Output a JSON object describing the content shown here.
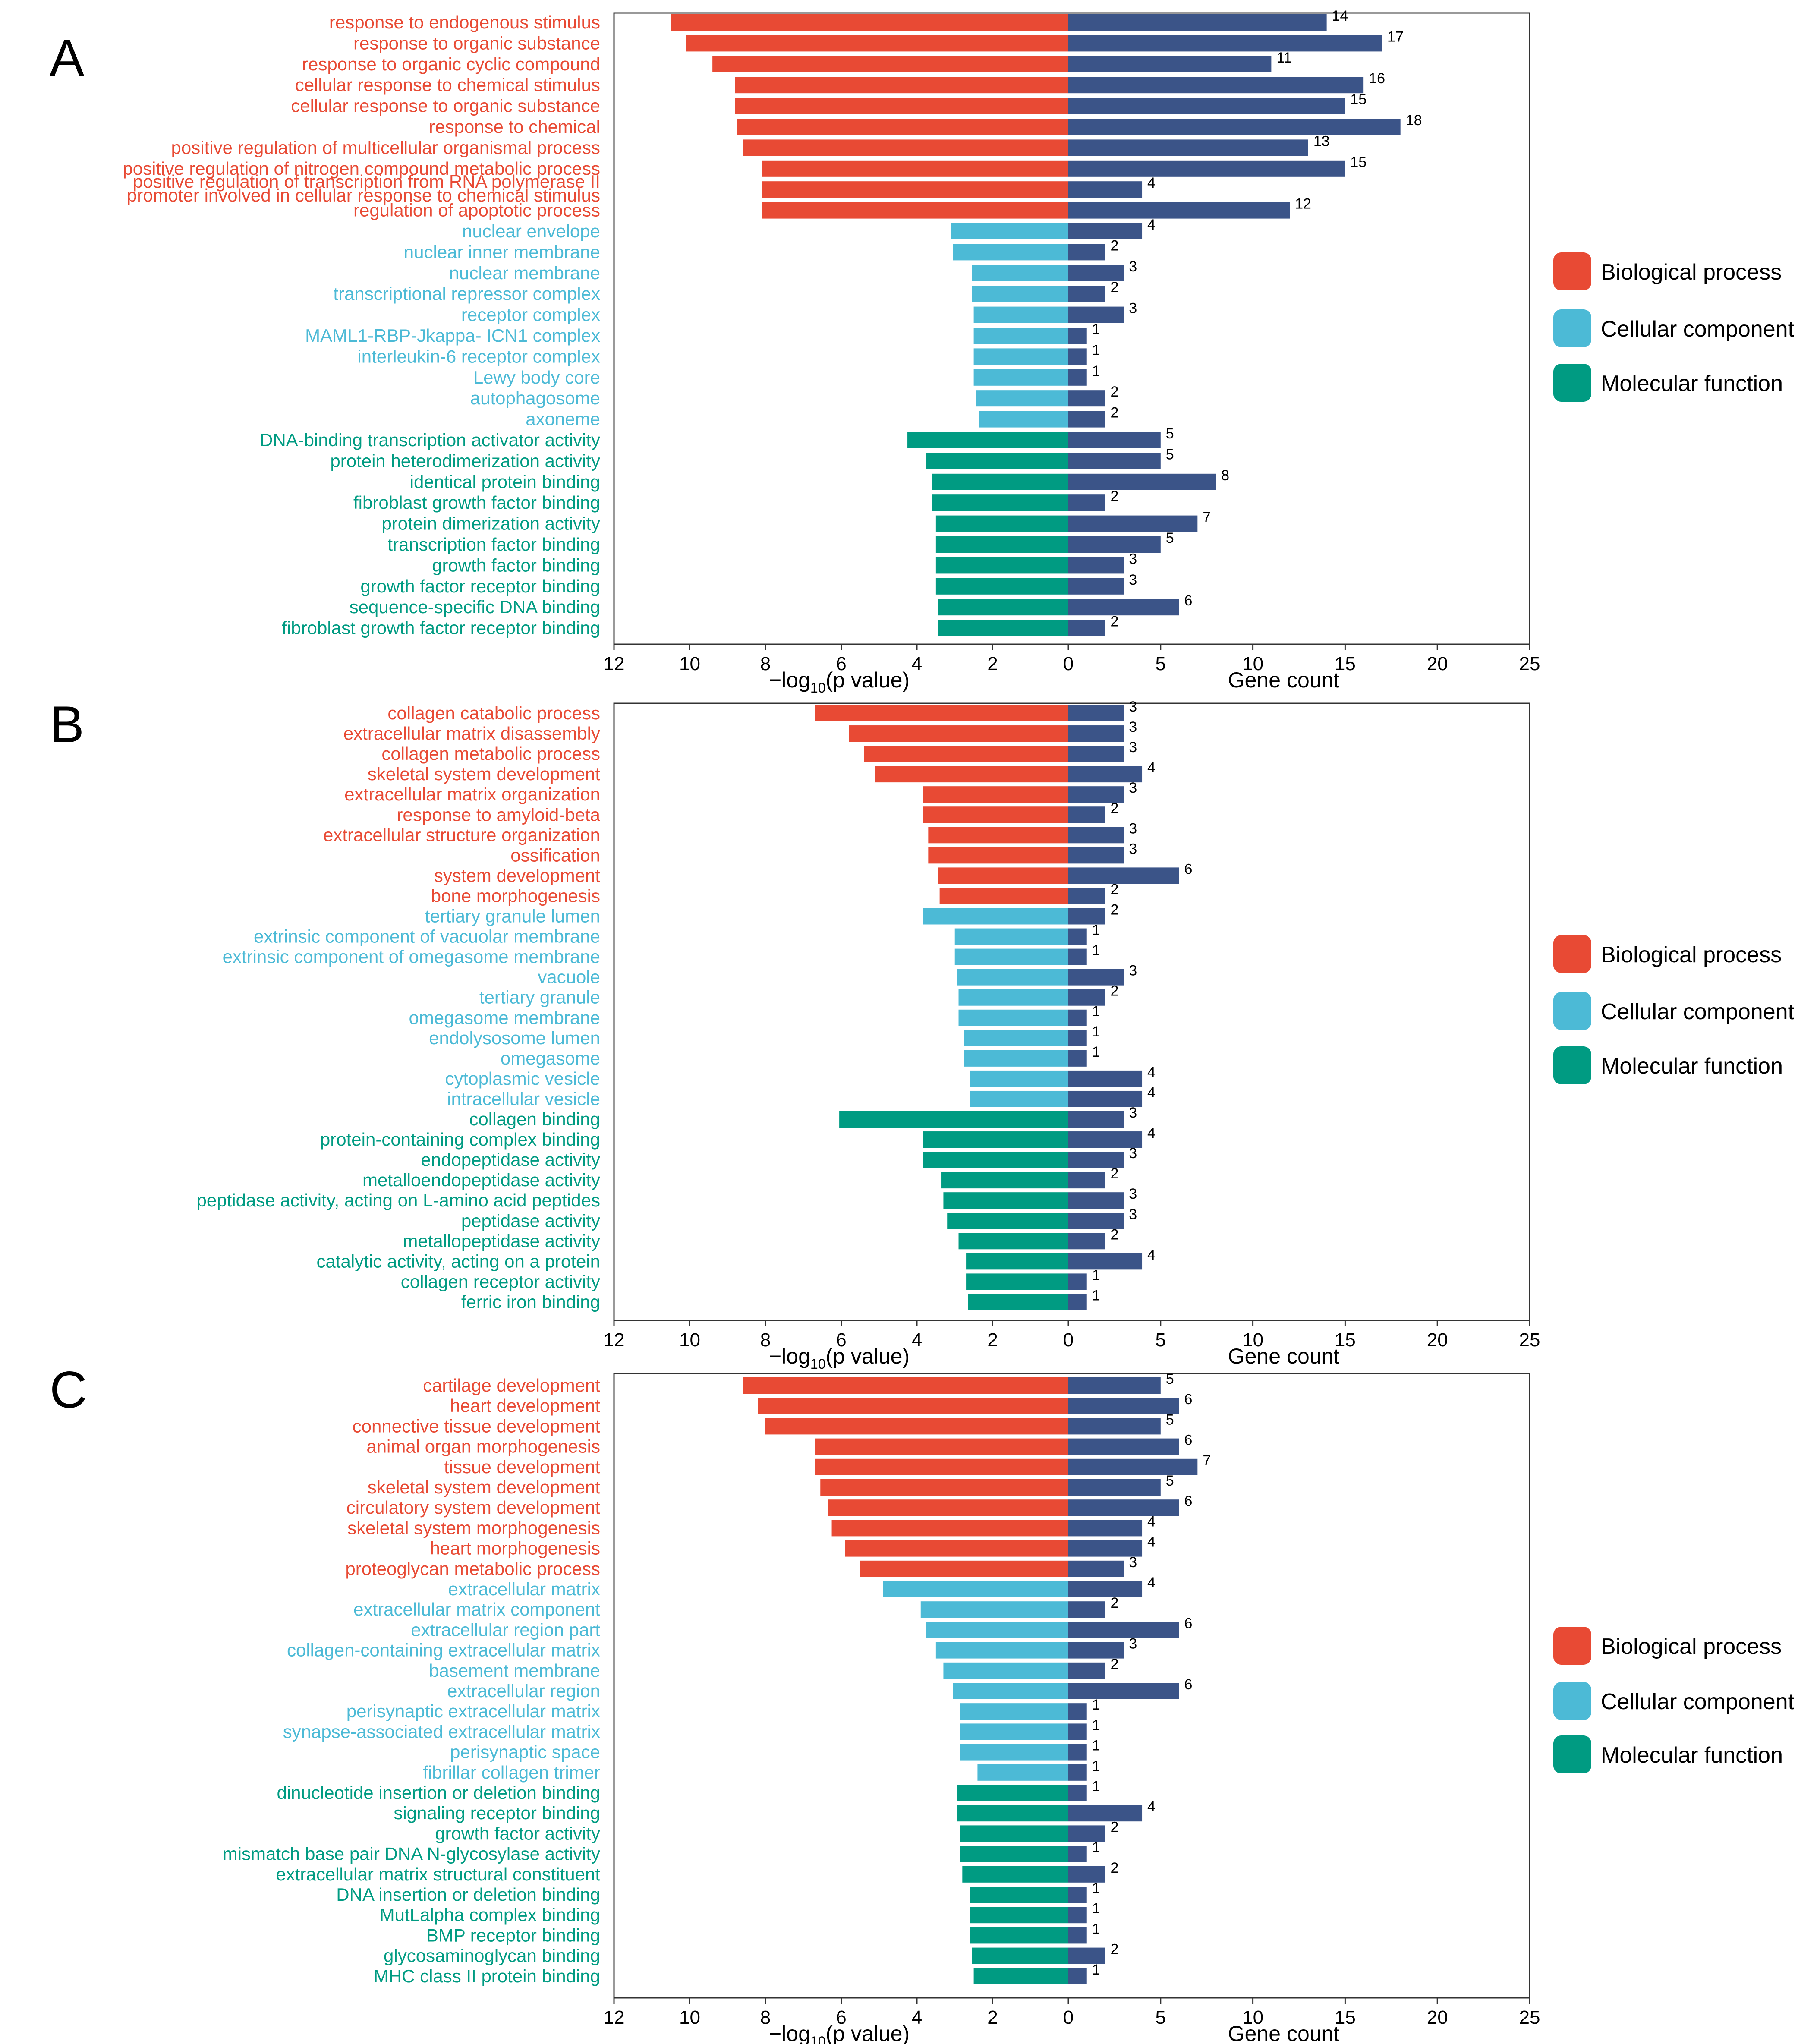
{
  "colors": {
    "bp": "#e84a34",
    "cc": "#4cbad6",
    "mf": "#009b82",
    "count": "#3b5488"
  },
  "legend": {
    "bp": "Biological process",
    "cc": "Cellular component",
    "mf": "Molecular function"
  },
  "chart_data": [
    {
      "type": "bar",
      "panel": "A",
      "left_axis": {
        "label_prefix": "−log",
        "label_sub": "10",
        "label_suffix": "(p value)",
        "lim": [
          12,
          0
        ],
        "ticks": [
          12,
          10,
          8,
          6,
          4,
          2,
          0
        ]
      },
      "right_axis": {
        "label": "Gene count",
        "lim": [
          0,
          25
        ],
        "ticks": [
          5,
          10,
          15,
          20,
          25
        ]
      },
      "terms": [
        {
          "name": "response to endogenous stimulus",
          "cat": "bp",
          "logp": 10.5,
          "count": 14
        },
        {
          "name": "response to organic substance",
          "cat": "bp",
          "logp": 10.1,
          "count": 17
        },
        {
          "name": "response to organic cyclic compound",
          "cat": "bp",
          "logp": 9.4,
          "count": 11
        },
        {
          "name": "cellular response to chemical stimulus",
          "cat": "bp",
          "logp": 8.8,
          "count": 16
        },
        {
          "name": "cellular response to organic substance",
          "cat": "bp",
          "logp": 8.8,
          "count": 15
        },
        {
          "name": "response to chemical",
          "cat": "bp",
          "logp": 8.75,
          "count": 18
        },
        {
          "name": "positive regulation of multicellular organismal process",
          "cat": "bp",
          "logp": 8.6,
          "count": 13
        },
        {
          "name": "positive regulation of nitrogen compound metabolic process",
          "cat": "bp",
          "logp": 8.1,
          "count": 15
        },
        {
          "name": "positive regulation of transcription from RNA polymerase II promoter involved in cellular response to chemical stimulus",
          "line1": "positive regulation of transcription from RNA polymerase II",
          "line2": "promoter involved in cellular response to chemical stimulus",
          "cat": "bp",
          "logp": 8.1,
          "count": 4
        },
        {
          "name": "regulation of apoptotic process",
          "cat": "bp",
          "logp": 8.1,
          "count": 12
        },
        {
          "name": "nuclear envelope",
          "cat": "cc",
          "logp": 3.1,
          "count": 4
        },
        {
          "name": "nuclear inner membrane",
          "cat": "cc",
          "logp": 3.05,
          "count": 2
        },
        {
          "name": "nuclear membrane",
          "cat": "cc",
          "logp": 2.55,
          "count": 3
        },
        {
          "name": "transcriptional repressor complex",
          "cat": "cc",
          "logp": 2.55,
          "count": 2
        },
        {
          "name": "receptor complex",
          "cat": "cc",
          "logp": 2.5,
          "count": 3
        },
        {
          "name": "MAML1-RBP-Jkappa- ICN1 complex",
          "cat": "cc",
          "logp": 2.5,
          "count": 1
        },
        {
          "name": "interleukin-6 receptor complex",
          "cat": "cc",
          "logp": 2.5,
          "count": 1
        },
        {
          "name": "Lewy body core",
          "cat": "cc",
          "logp": 2.5,
          "count": 1
        },
        {
          "name": "autophagosome",
          "cat": "cc",
          "logp": 2.45,
          "count": 2
        },
        {
          "name": "axoneme",
          "cat": "cc",
          "logp": 2.35,
          "count": 2
        },
        {
          "name": "DNA-binding transcription activator activity",
          "cat": "mf",
          "logp": 4.25,
          "count": 5
        },
        {
          "name": "protein heterodimerization activity",
          "cat": "mf",
          "logp": 3.75,
          "count": 5
        },
        {
          "name": "identical protein binding",
          "cat": "mf",
          "logp": 3.6,
          "count": 8
        },
        {
          "name": "fibroblast growth factor binding",
          "cat": "mf",
          "logp": 3.6,
          "count": 2
        },
        {
          "name": "protein dimerization activity",
          "cat": "mf",
          "logp": 3.5,
          "count": 7
        },
        {
          "name": "transcription factor binding",
          "cat": "mf",
          "logp": 3.5,
          "count": 5
        },
        {
          "name": "growth factor binding",
          "cat": "mf",
          "logp": 3.5,
          "count": 3
        },
        {
          "name": "growth factor receptor binding",
          "cat": "mf",
          "logp": 3.5,
          "count": 3
        },
        {
          "name": "sequence-specific DNA binding",
          "cat": "mf",
          "logp": 3.45,
          "count": 6
        },
        {
          "name": "fibroblast growth factor receptor binding",
          "cat": "mf",
          "logp": 3.45,
          "count": 2
        }
      ]
    },
    {
      "type": "bar",
      "panel": "B",
      "left_axis": {
        "label_prefix": "−log",
        "label_sub": "10",
        "label_suffix": "(p value)",
        "lim": [
          12,
          0
        ],
        "ticks": [
          12,
          10,
          8,
          6,
          4,
          2,
          0
        ]
      },
      "right_axis": {
        "label": "Gene count",
        "lim": [
          0,
          25
        ],
        "ticks": [
          5,
          10,
          15,
          20,
          25
        ]
      },
      "terms": [
        {
          "name": "collagen catabolic process",
          "cat": "bp",
          "logp": 6.7,
          "count": 3
        },
        {
          "name": "extracellular matrix disassembly",
          "cat": "bp",
          "logp": 5.8,
          "count": 3
        },
        {
          "name": "collagen metabolic process",
          "cat": "bp",
          "logp": 5.4,
          "count": 3
        },
        {
          "name": "skeletal system development",
          "cat": "bp",
          "logp": 5.1,
          "count": 4
        },
        {
          "name": "extracellular matrix organization",
          "cat": "bp",
          "logp": 3.85,
          "count": 3
        },
        {
          "name": "response to amyloid-beta",
          "cat": "bp",
          "logp": 3.85,
          "count": 2
        },
        {
          "name": "extracellular structure organization",
          "cat": "bp",
          "logp": 3.7,
          "count": 3
        },
        {
          "name": "ossification",
          "cat": "bp",
          "logp": 3.7,
          "count": 3
        },
        {
          "name": "system development",
          "cat": "bp",
          "logp": 3.45,
          "count": 6
        },
        {
          "name": "bone morphogenesis",
          "cat": "bp",
          "logp": 3.4,
          "count": 2
        },
        {
          "name": "tertiary granule lumen",
          "cat": "cc",
          "logp": 3.85,
          "count": 2
        },
        {
          "name": "extrinsic component of vacuolar membrane",
          "cat": "cc",
          "logp": 3.0,
          "count": 1
        },
        {
          "name": "extrinsic component of omegasome membrane",
          "cat": "cc",
          "logp": 3.0,
          "count": 1
        },
        {
          "name": "vacuole",
          "cat": "cc",
          "logp": 2.95,
          "count": 3
        },
        {
          "name": "tertiary granule",
          "cat": "cc",
          "logp": 2.9,
          "count": 2
        },
        {
          "name": "omegasome membrane",
          "cat": "cc",
          "logp": 2.9,
          "count": 1
        },
        {
          "name": "endolysosome lumen",
          "cat": "cc",
          "logp": 2.75,
          "count": 1
        },
        {
          "name": "omegasome",
          "cat": "cc",
          "logp": 2.75,
          "count": 1
        },
        {
          "name": "cytoplasmic vesicle",
          "cat": "cc",
          "logp": 2.6,
          "count": 4
        },
        {
          "name": "intracellular vesicle",
          "cat": "cc",
          "logp": 2.6,
          "count": 4
        },
        {
          "name": "collagen binding",
          "cat": "mf",
          "logp": 6.05,
          "count": 3
        },
        {
          "name": "protein-containing complex binding",
          "cat": "mf",
          "logp": 3.85,
          "count": 4
        },
        {
          "name": "endopeptidase activity",
          "cat": "mf",
          "logp": 3.85,
          "count": 3
        },
        {
          "name": "metalloendopeptidase activity",
          "cat": "mf",
          "logp": 3.35,
          "count": 2
        },
        {
          "name": "peptidase activity, acting on L-amino acid peptides",
          "cat": "mf",
          "logp": 3.3,
          "count": 3
        },
        {
          "name": "peptidase activity",
          "cat": "mf",
          "logp": 3.2,
          "count": 3
        },
        {
          "name": "metallopeptidase activity",
          "cat": "mf",
          "logp": 2.9,
          "count": 2
        },
        {
          "name": "catalytic activity, acting on a protein",
          "cat": "mf",
          "logp": 2.7,
          "count": 4
        },
        {
          "name": "collagen receptor activity",
          "cat": "mf",
          "logp": 2.7,
          "count": 1
        },
        {
          "name": "ferric iron binding",
          "cat": "mf",
          "logp": 2.65,
          "count": 1
        }
      ]
    },
    {
      "type": "bar",
      "panel": "C",
      "left_axis": {
        "label_prefix": "−log",
        "label_sub": "10",
        "label_suffix": "(p value)",
        "lim": [
          12,
          0
        ],
        "ticks": [
          12,
          10,
          8,
          6,
          4,
          2,
          0
        ]
      },
      "right_axis": {
        "label": "Gene count",
        "lim": [
          0,
          25
        ],
        "ticks": [
          5,
          10,
          15,
          20,
          25
        ]
      },
      "terms": [
        {
          "name": "cartilage development",
          "cat": "bp",
          "logp": 8.6,
          "count": 5
        },
        {
          "name": "heart development",
          "cat": "bp",
          "logp": 8.2,
          "count": 6
        },
        {
          "name": "connective tissue development",
          "cat": "bp",
          "logp": 8.0,
          "count": 5
        },
        {
          "name": "animal organ morphogenesis",
          "cat": "bp",
          "logp": 6.7,
          "count": 6
        },
        {
          "name": "tissue development",
          "cat": "bp",
          "logp": 6.7,
          "count": 7
        },
        {
          "name": "skeletal system development",
          "cat": "bp",
          "logp": 6.55,
          "count": 5
        },
        {
          "name": "circulatory system development",
          "cat": "bp",
          "logp": 6.35,
          "count": 6
        },
        {
          "name": "skeletal system morphogenesis",
          "cat": "bp",
          "logp": 6.25,
          "count": 4
        },
        {
          "name": "heart morphogenesis",
          "cat": "bp",
          "logp": 5.9,
          "count": 4
        },
        {
          "name": "proteoglycan metabolic process",
          "cat": "bp",
          "logp": 5.5,
          "count": 3
        },
        {
          "name": "extracellular matrix",
          "cat": "cc",
          "logp": 4.9,
          "count": 4
        },
        {
          "name": "extracellular matrix component",
          "cat": "cc",
          "logp": 3.9,
          "count": 2
        },
        {
          "name": "extracellular region part",
          "cat": "cc",
          "logp": 3.75,
          "count": 6
        },
        {
          "name": "collagen-containing extracellular matrix",
          "cat": "cc",
          "logp": 3.5,
          "count": 3
        },
        {
          "name": "basement membrane",
          "cat": "cc",
          "logp": 3.3,
          "count": 2
        },
        {
          "name": "extracellular region",
          "cat": "cc",
          "logp": 3.05,
          "count": 6
        },
        {
          "name": "perisynaptic extracellular matrix",
          "cat": "cc",
          "logp": 2.85,
          "count": 1
        },
        {
          "name": "synapse-associated extracellular matrix",
          "cat": "cc",
          "logp": 2.85,
          "count": 1
        },
        {
          "name": "perisynaptic space",
          "cat": "cc",
          "logp": 2.85,
          "count": 1
        },
        {
          "name": "fibrillar collagen trimer",
          "cat": "cc",
          "logp": 2.4,
          "count": 1
        },
        {
          "name": "dinucleotide insertion or deletion binding",
          "cat": "mf",
          "logp": 2.95,
          "count": 1
        },
        {
          "name": "signaling receptor binding",
          "cat": "mf",
          "logp": 2.95,
          "count": 4
        },
        {
          "name": "growth factor activity",
          "cat": "mf",
          "logp": 2.85,
          "count": 2
        },
        {
          "name": "mismatch base pair DNA N-glycosylase activity",
          "cat": "mf",
          "logp": 2.85,
          "count": 1
        },
        {
          "name": "extracellular matrix structural constituent",
          "cat": "mf",
          "logp": 2.8,
          "count": 2
        },
        {
          "name": "DNA insertion or deletion binding",
          "cat": "mf",
          "logp": 2.6,
          "count": 1
        },
        {
          "name": "MutLalpha complex binding",
          "cat": "mf",
          "logp": 2.6,
          "count": 1
        },
        {
          "name": "BMP receptor binding",
          "cat": "mf",
          "logp": 2.6,
          "count": 1
        },
        {
          "name": "glycosaminoglycan binding",
          "cat": "mf",
          "logp": 2.55,
          "count": 2
        },
        {
          "name": "MHC class II protein binding",
          "cat": "mf",
          "logp": 2.5,
          "count": 1
        }
      ]
    }
  ]
}
